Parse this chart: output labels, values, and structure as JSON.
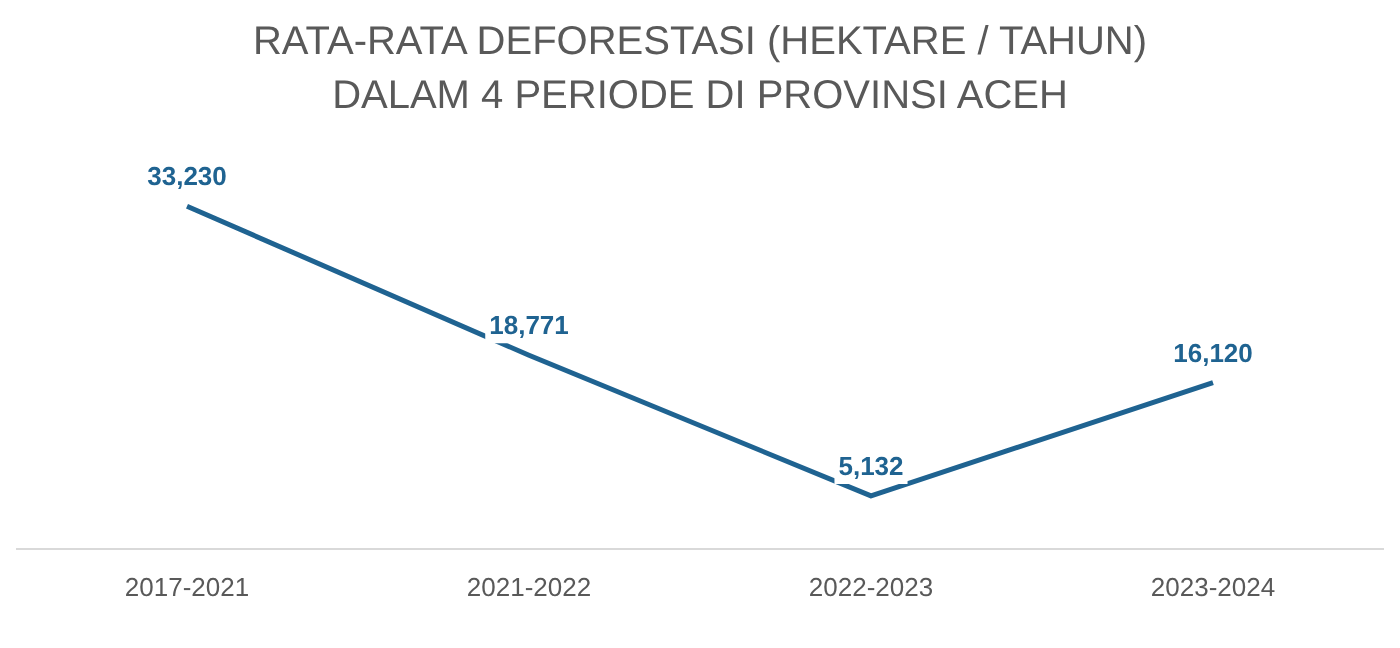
{
  "chart_data": {
    "type": "line",
    "title": "RATA-RATA DEFORESTASI (HEKTARE / TAHUN) DALAM 4 PERIODE DI PROVINSI ACEH",
    "categories": [
      "2017-2021",
      "2021-2022",
      "2022-2023",
      "2023-2024"
    ],
    "series": [
      {
        "color": "#1f6391",
        "values": [
          33230,
          18771,
          5132,
          16120
        ],
        "value_labels": [
          "33,230",
          "18,771",
          "5,132",
          "16,120"
        ]
      }
    ],
    "grid": false,
    "legend": false,
    "marker": "none",
    "line_style": "solid"
  }
}
